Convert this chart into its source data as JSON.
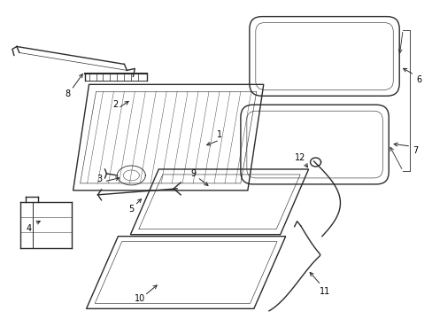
{
  "bg_color": "#ffffff",
  "line_color": "#2a2a2a",
  "label_color": "#000000",
  "font_size": 7.0,
  "lw_main": 1.0,
  "lw_thin": 0.6,
  "lw_hatch": 0.35
}
